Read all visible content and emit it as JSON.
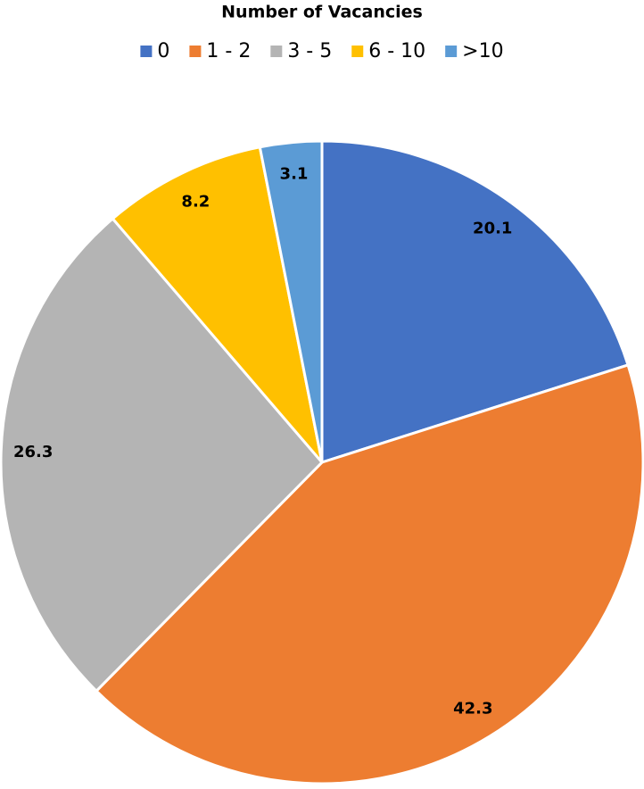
{
  "chart_data": {
    "type": "pie",
    "title": "Number of Vacancies",
    "categories": [
      "0",
      "1 - 2",
      "3 - 5",
      "6 - 10",
      ">10"
    ],
    "values": [
      20.1,
      42.3,
      26.3,
      8.2,
      3.1
    ],
    "colors": [
      "#4472c4",
      "#ed7d31",
      "#b4b4b4",
      "#ffc000",
      "#5b9bd5"
    ],
    "legend": "top"
  }
}
